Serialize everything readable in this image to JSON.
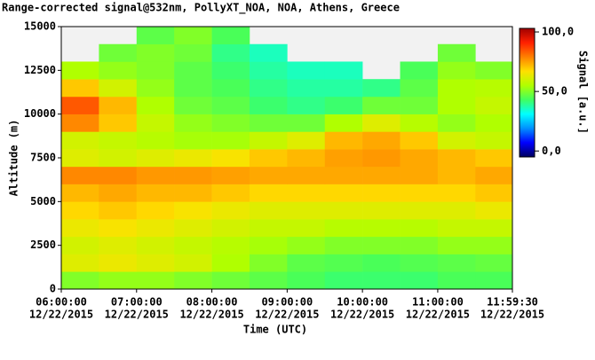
{
  "chart_data": {
    "type": "heatmap",
    "title": "Range-corrected signal@532nm, PollyXT_NOA, NOA, Athens, Greece",
    "xlabel": "Time (UTC)",
    "ylabel": "Altitude (m)",
    "colorbar_label": "Signal [a.u.]",
    "xlim": [
      6,
      11.9917
    ],
    "ylim": [
      0,
      15000
    ],
    "zlim": [
      -5,
      103
    ],
    "xticks": [
      {
        "value": 6,
        "label": "06:00:00",
        "date": "12/22/2015"
      },
      {
        "value": 7,
        "label": "07:00:00",
        "date": "12/22/2015"
      },
      {
        "value": 8,
        "label": "08:00:00",
        "date": "12/22/2015"
      },
      {
        "value": 9,
        "label": "09:00:00",
        "date": "12/22/2015"
      },
      {
        "value": 10,
        "label": "10:00:00",
        "date": "12/22/2015"
      },
      {
        "value": 11,
        "label": "11:00:00",
        "date": "12/22/2015"
      },
      {
        "value": 11.9917,
        "label": "11:59:30",
        "date": "12/22/2015"
      }
    ],
    "yticks": [
      0,
      2500,
      5000,
      7500,
      10000,
      12500,
      15000
    ],
    "zticks": [
      {
        "value": 0,
        "label": "0,0"
      },
      {
        "value": 50,
        "label": "50,0"
      },
      {
        "value": 100,
        "label": "100,0"
      }
    ],
    "colors": [
      "#000060",
      "#0000ff",
      "#0090ff",
      "#00ffff",
      "#40ff60",
      "#b0ff00",
      "#ffe000",
      "#ff8000",
      "#ff2000",
      "#a00000"
    ],
    "x_bins": [
      6,
      6.5,
      7,
      7.5,
      8,
      8.5,
      9,
      9.5,
      10,
      10.5,
      11,
      11.5,
      11.9917
    ],
    "y_bins": [
      0,
      1000,
      2000,
      3000,
      4000,
      5000,
      6000,
      7000,
      8000,
      9000,
      10000,
      11000,
      12000,
      13000,
      14000,
      15000
    ],
    "z": [
      [
        50,
        52,
        52,
        50,
        48,
        46,
        44,
        42,
        42,
        42,
        44,
        44
      ],
      [
        62,
        64,
        62,
        60,
        55,
        50,
        46,
        45,
        44,
        45,
        46,
        47
      ],
      [
        60,
        62,
        60,
        58,
        56,
        54,
        52,
        50,
        50,
        50,
        52,
        52
      ],
      [
        64,
        66,
        64,
        62,
        60,
        58,
        58,
        56,
        56,
        56,
        58,
        58
      ],
      [
        68,
        70,
        68,
        66,
        64,
        62,
        62,
        62,
        62,
        62,
        62,
        64
      ],
      [
        72,
        74,
        72,
        72,
        70,
        68,
        68,
        68,
        68,
        68,
        68,
        70
      ],
      [
        78,
        78,
        76,
        76,
        75,
        74,
        74,
        74,
        74,
        74,
        72,
        74
      ],
      [
        62,
        60,
        62,
        64,
        66,
        70,
        72,
        75,
        76,
        74,
        72,
        70
      ],
      [
        60,
        58,
        56,
        54,
        54,
        58,
        62,
        72,
        74,
        70,
        60,
        58
      ],
      [
        78,
        70,
        58,
        52,
        50,
        48,
        48,
        55,
        62,
        56,
        52,
        55
      ],
      [
        84,
        72,
        55,
        48,
        46,
        42,
        40,
        42,
        48,
        48,
        55,
        58
      ],
      [
        70,
        60,
        52,
        46,
        44,
        40,
        38,
        38,
        40,
        46,
        55,
        56
      ],
      [
        55,
        52,
        50,
        46,
        42,
        38,
        36,
        36,
        null,
        44,
        52,
        50
      ],
      [
        null,
        48,
        50,
        48,
        40,
        36,
        null,
        null,
        null,
        null,
        48,
        null
      ],
      [
        null,
        null,
        46,
        50,
        44,
        null,
        null,
        null,
        null,
        null,
        null,
        null
      ]
    ]
  }
}
